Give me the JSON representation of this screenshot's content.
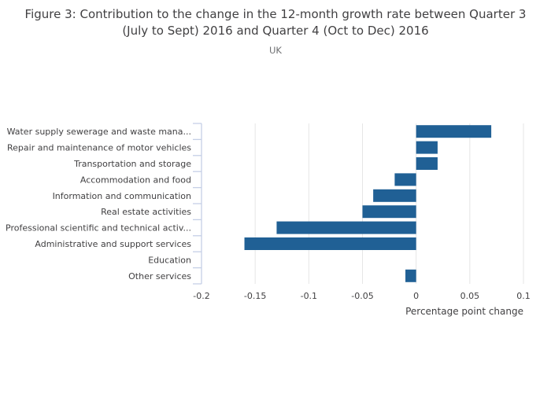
{
  "chart_data": {
    "type": "bar",
    "orientation": "horizontal",
    "title": "Figure 3: Contribution to the change in the 12-month growth rate between Quarter 3 (July to Sept) 2016 and Quarter 4 (Oct to Dec) 2016",
    "subtitle": "UK",
    "categories": [
      "Water supply sewerage and waste mana...",
      "Repair and maintenance of motor vehicles",
      "Transportation and storage",
      "Accommodation and food",
      "Information and communication",
      "Real estate activities",
      "Professional scientific and technical activ...",
      "Administrative and support services",
      "Education",
      "Other services"
    ],
    "values": [
      0.07,
      0.02,
      0.02,
      -0.02,
      -0.04,
      -0.05,
      -0.13,
      -0.16,
      0,
      -0.01
    ],
    "xlabel": "Percentage point change",
    "ylabel": "",
    "xlim": [
      -0.2,
      0.1
    ],
    "xticks": [
      -0.2,
      -0.15,
      -0.1,
      -0.05,
      0,
      0.05,
      0.1
    ],
    "xtick_labels": [
      "-0.2",
      "-0.15",
      "-0.1",
      "-0.05",
      "0",
      "0.05",
      "0.1"
    ],
    "grid": true,
    "legend": "none",
    "colors": {
      "bar": "#206095",
      "gridline": "#e6e6e6",
      "axis": "#c5cfe6",
      "title_text": "#414042",
      "subtitle_text": "#6e6f72",
      "label_text": "#414042"
    }
  }
}
